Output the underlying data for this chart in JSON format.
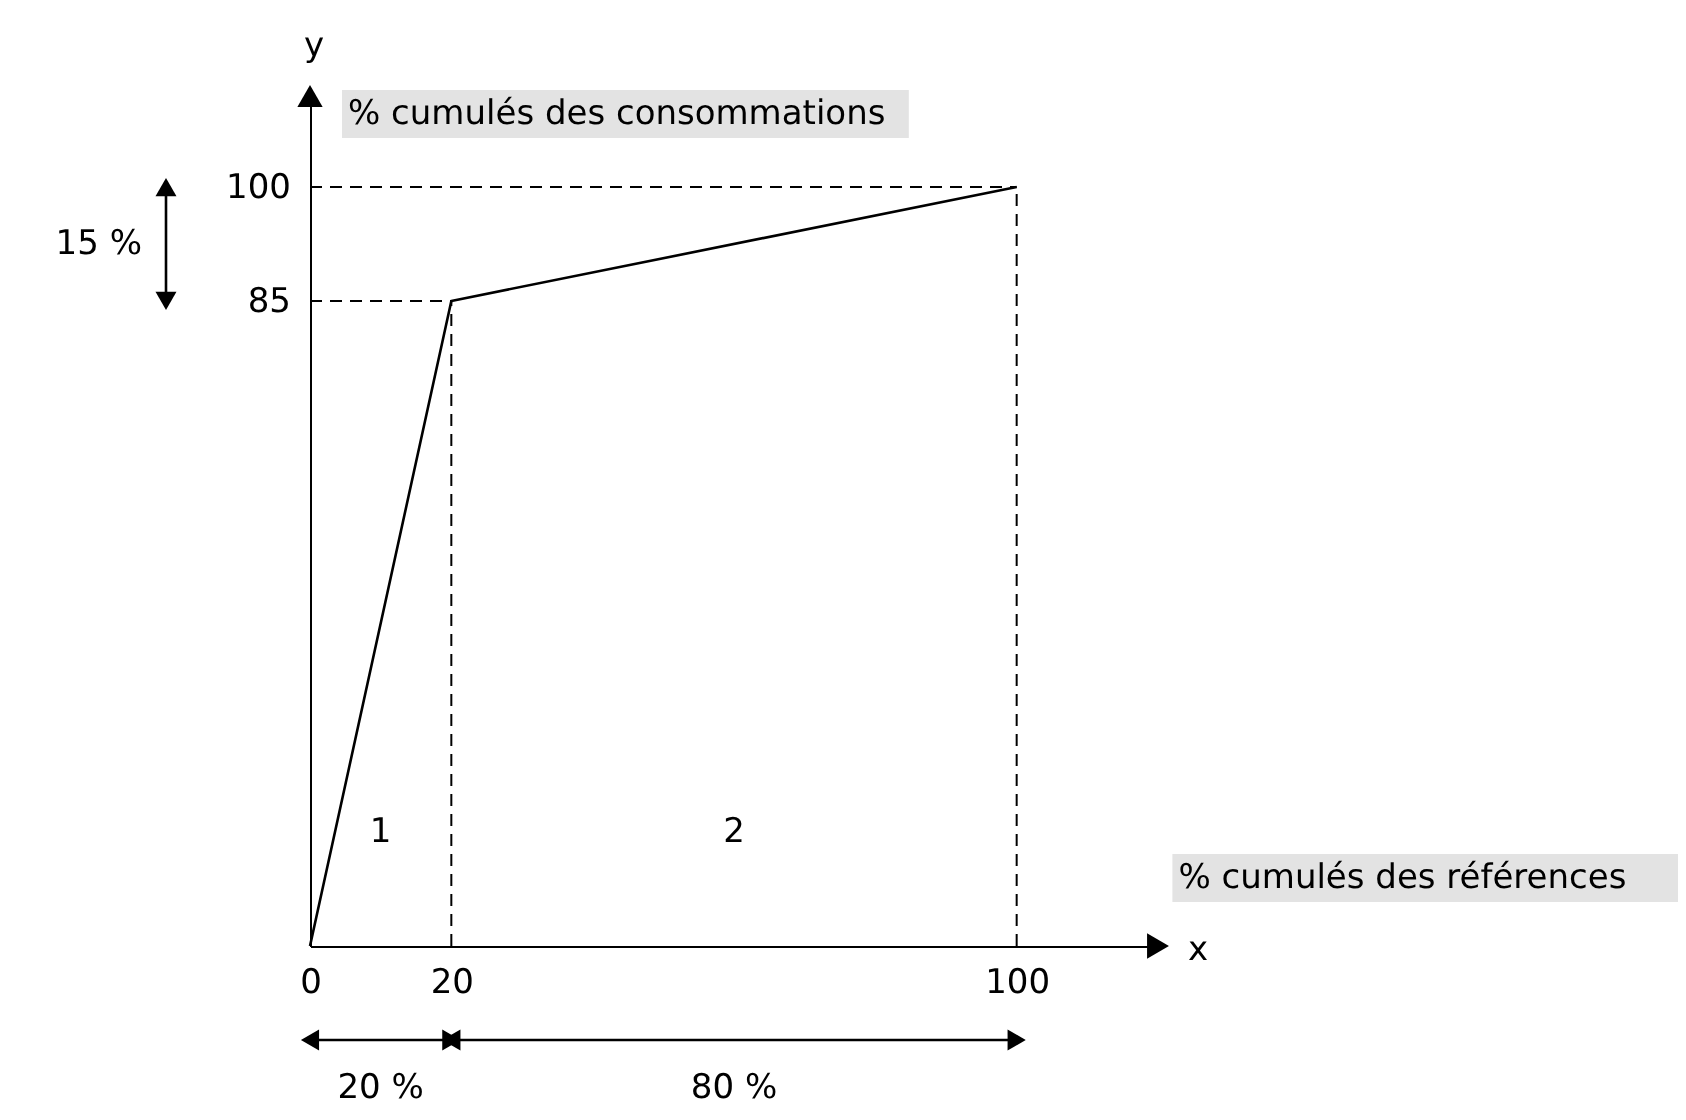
{
  "chart_data": {
    "type": "line",
    "xlabel": "% cumulés des références",
    "ylabel": "% cumulés des consommations",
    "x": [
      0,
      20,
      100
    ],
    "series": [
      {
        "color": "#000000",
        "values": [
          0,
          85,
          100
        ]
      }
    ],
    "xlim": [
      0,
      120
    ],
    "ylim": [
      0,
      112
    ],
    "xticks": [
      0,
      20,
      100
    ],
    "yticks": [
      85,
      100
    ],
    "grid": false,
    "line_style": "solid",
    "marker": "none",
    "ref_lines": [
      {
        "axis": "x",
        "value": 20,
        "line_style": "dashed",
        "color": "#000000"
      },
      {
        "axis": "x",
        "value": 100,
        "line_style": "dashed",
        "color": "#000000"
      },
      {
        "axis": "y",
        "value": 85,
        "line_style": "dashed",
        "color": "#000000"
      },
      {
        "axis": "y",
        "value": 100,
        "line_style": "dashed",
        "color": "#000000"
      }
    ],
    "annotations": [
      "15 %",
      "20 %",
      "80 %",
      "x",
      "y",
      "1",
      "2"
    ]
  }
}
